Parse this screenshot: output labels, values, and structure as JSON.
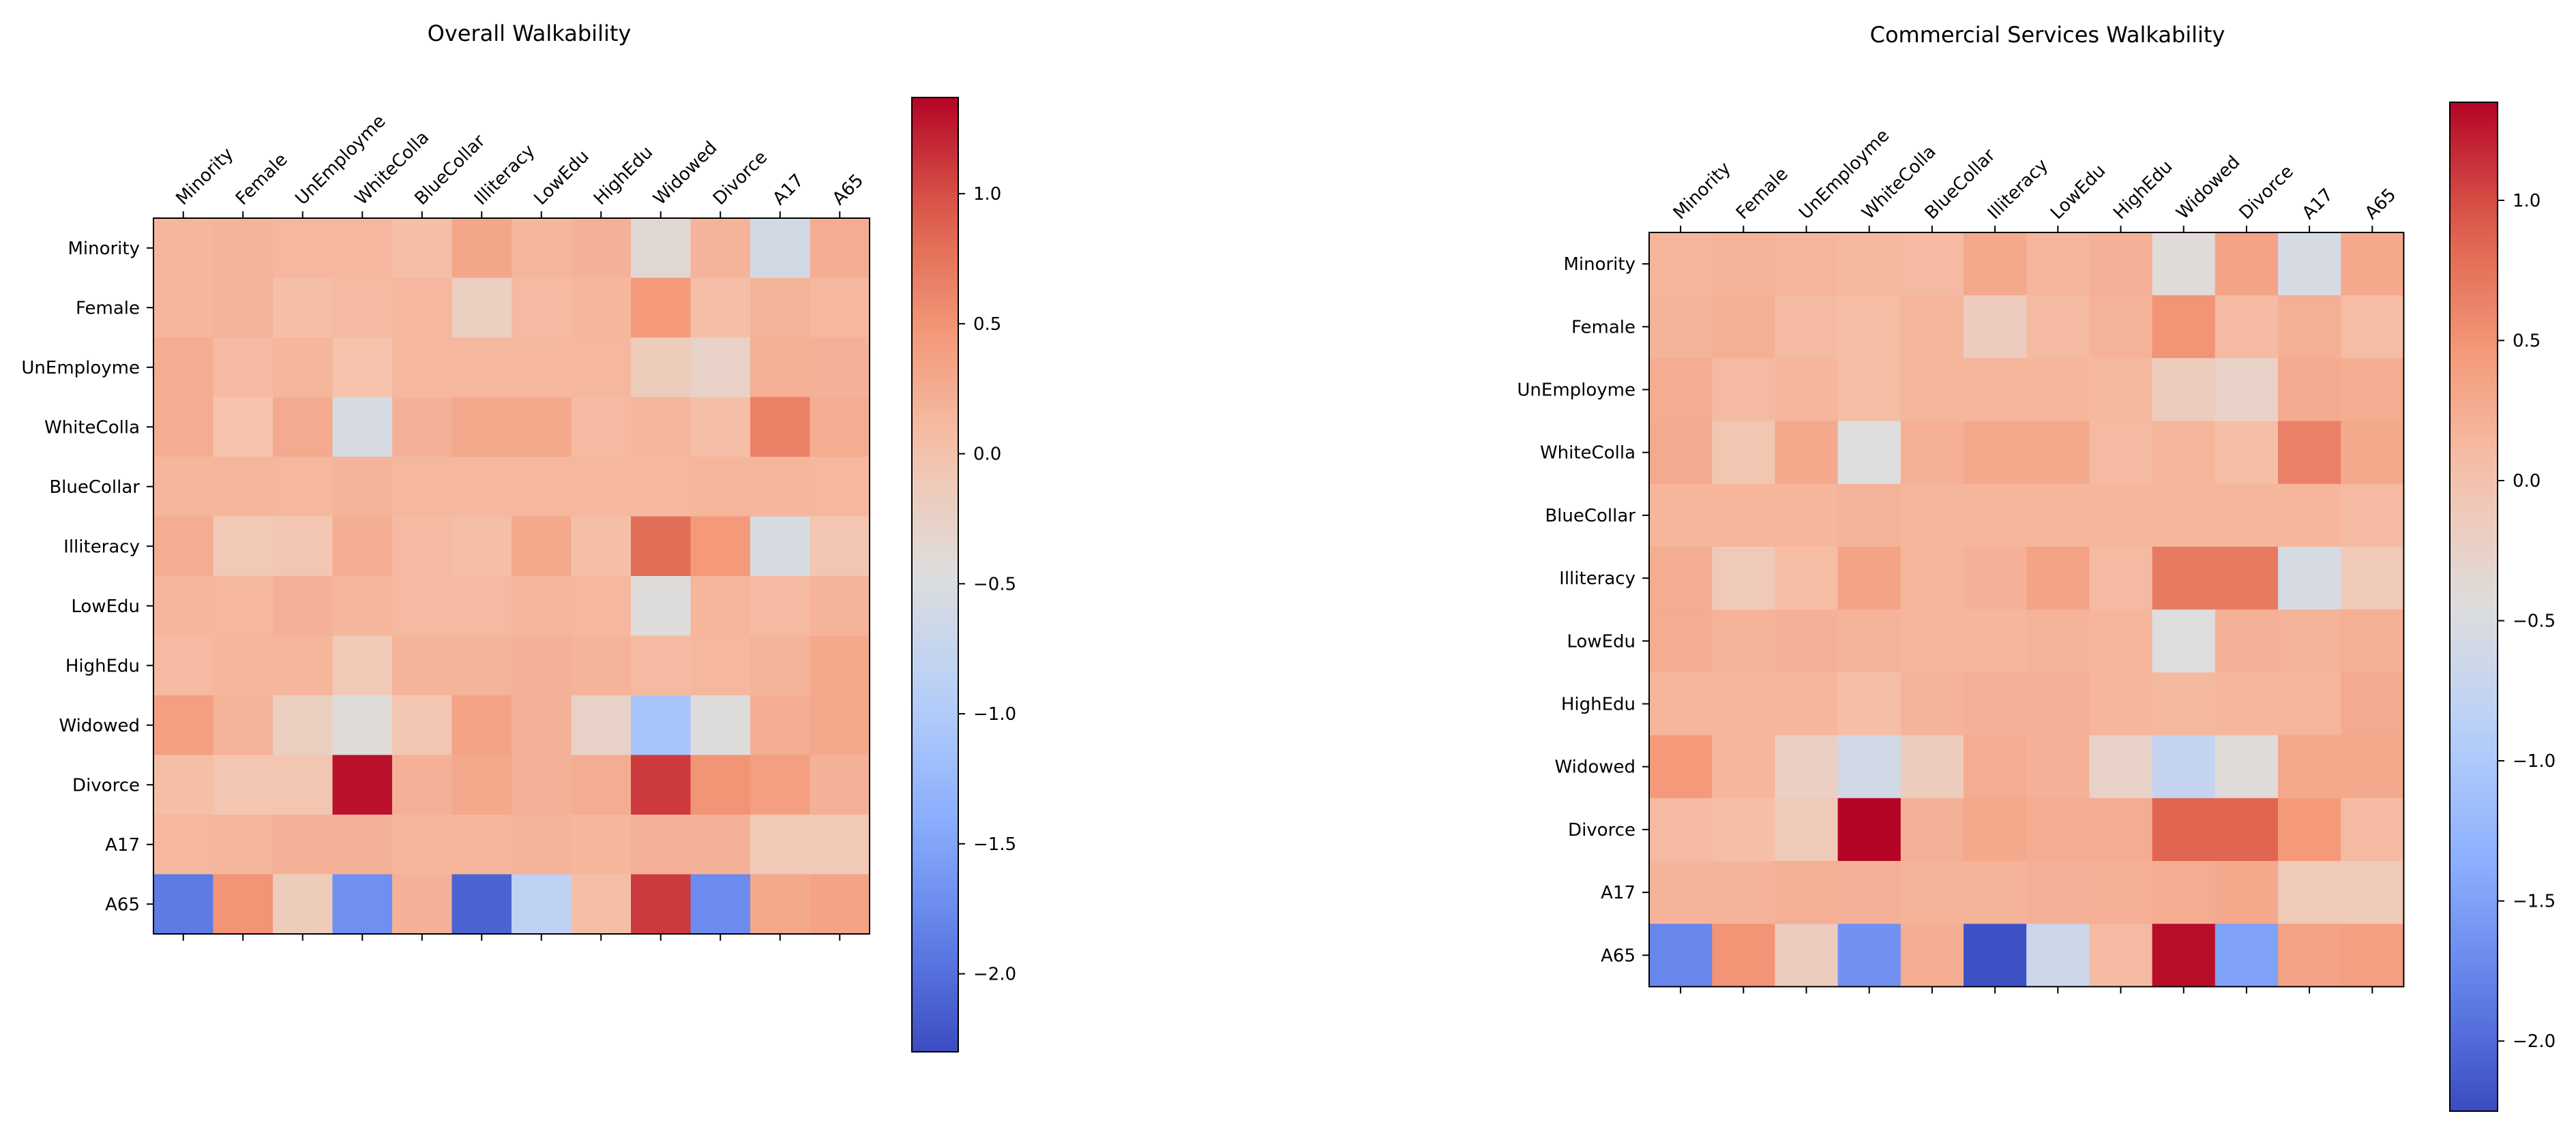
{
  "chart_data": [
    {
      "type": "heatmap",
      "title": "Overall Walkability",
      "xlabel": "",
      "ylabel": "",
      "x_categories": [
        "Minority",
        "Female",
        "UnEmployme",
        "WhiteColla",
        "BlueCollar",
        "Illiteracy",
        "LowEdu",
        "HighEdu",
        "Widowed",
        "Divorce",
        "A17",
        "A65"
      ],
      "y_categories": [
        "Minority",
        "Female",
        "UnEmployme",
        "WhiteColla",
        "BlueCollar",
        "Illiteracy",
        "LowEdu",
        "HighEdu",
        "Widowed",
        "Divorce",
        "A17",
        "A65"
      ],
      "values": [
        [
          0.15,
          0.18,
          0.12,
          0.12,
          0.05,
          0.32,
          0.15,
          0.2,
          -0.38,
          0.18,
          -0.6,
          0.25
        ],
        [
          0.15,
          0.18,
          0.05,
          0.1,
          0.12,
          -0.2,
          0.1,
          0.15,
          0.45,
          0.05,
          0.18,
          0.12
        ],
        [
          0.25,
          0.1,
          0.15,
          0.0,
          0.12,
          0.12,
          0.12,
          0.12,
          -0.15,
          -0.25,
          0.22,
          0.2
        ],
        [
          0.25,
          0.0,
          0.28,
          -0.55,
          0.2,
          0.3,
          0.3,
          0.1,
          0.15,
          0.05,
          0.65,
          0.25
        ],
        [
          0.15,
          0.15,
          0.12,
          0.18,
          0.12,
          0.12,
          0.12,
          0.12,
          0.12,
          0.15,
          0.15,
          0.12
        ],
        [
          0.25,
          -0.1,
          -0.05,
          0.25,
          0.1,
          0.05,
          0.3,
          0.05,
          0.8,
          0.45,
          -0.55,
          -0.05
        ],
        [
          0.15,
          0.12,
          0.2,
          0.15,
          0.1,
          0.1,
          0.15,
          0.12,
          -0.45,
          0.15,
          0.1,
          0.18
        ],
        [
          0.1,
          0.15,
          0.15,
          -0.1,
          0.18,
          0.18,
          0.2,
          0.18,
          0.1,
          0.12,
          0.18,
          0.3
        ],
        [
          0.4,
          0.18,
          -0.2,
          -0.42,
          -0.05,
          0.35,
          0.2,
          -0.25,
          -1.1,
          -0.45,
          0.25,
          0.3
        ],
        [
          0.05,
          -0.05,
          -0.05,
          1.3,
          0.2,
          0.3,
          0.2,
          0.25,
          1.1,
          0.5,
          0.4,
          0.2
        ],
        [
          0.12,
          0.15,
          0.2,
          0.2,
          0.15,
          0.15,
          0.18,
          0.15,
          0.2,
          0.2,
          -0.1,
          -0.1
        ],
        [
          -1.9,
          0.5,
          -0.15,
          -1.7,
          0.2,
          -2.1,
          -0.85,
          0.05,
          1.1,
          -1.75,
          0.3,
          0.35
        ]
      ],
      "colorbar": {
        "min": -2.3,
        "max": 1.37,
        "ticks": [
          1.0,
          0.5,
          0.0,
          -0.5,
          -1.0,
          -1.5,
          -2.0
        ],
        "tick_labels": [
          "1.0",
          "0.5",
          "0.0",
          "−0.5",
          "−1.0",
          "−1.5",
          "−2.0"
        ]
      },
      "colormap": "coolwarm"
    },
    {
      "type": "heatmap",
      "title": "Commercial Services Walkability",
      "xlabel": "",
      "ylabel": "",
      "x_categories": [
        "Minority",
        "Female",
        "UnEmployme",
        "WhiteColla",
        "BlueCollar",
        "Illiteracy",
        "LowEdu",
        "HighEdu",
        "Widowed",
        "Divorce",
        "A17",
        "A65"
      ],
      "y_categories": [
        "Minority",
        "Female",
        "UnEmployme",
        "WhiteColla",
        "BlueCollar",
        "Illiteracy",
        "LowEdu",
        "HighEdu",
        "Widowed",
        "Divorce",
        "A17",
        "A65"
      ],
      "values": [
        [
          0.15,
          0.18,
          0.15,
          0.12,
          0.1,
          0.3,
          0.15,
          0.2,
          -0.4,
          0.35,
          -0.55,
          0.3
        ],
        [
          0.18,
          0.22,
          0.1,
          0.08,
          0.15,
          -0.15,
          0.1,
          0.18,
          0.5,
          0.1,
          0.22,
          0.08
        ],
        [
          0.25,
          0.1,
          0.15,
          0.08,
          0.15,
          0.15,
          0.15,
          0.12,
          -0.15,
          -0.25,
          0.28,
          0.25
        ],
        [
          0.28,
          -0.05,
          0.3,
          -0.45,
          0.22,
          0.3,
          0.3,
          0.1,
          0.15,
          0.05,
          0.65,
          0.3
        ],
        [
          0.15,
          0.15,
          0.15,
          0.18,
          0.15,
          0.15,
          0.15,
          0.15,
          0.15,
          0.15,
          0.15,
          0.1
        ],
        [
          0.25,
          -0.1,
          0.08,
          0.35,
          0.15,
          0.2,
          0.35,
          0.1,
          0.7,
          0.7,
          -0.55,
          -0.1
        ],
        [
          0.25,
          0.18,
          0.2,
          0.18,
          0.15,
          0.15,
          0.18,
          0.15,
          -0.45,
          0.2,
          0.18,
          0.22
        ],
        [
          0.15,
          0.15,
          0.15,
          0.05,
          0.18,
          0.2,
          0.2,
          0.15,
          0.12,
          0.15,
          0.15,
          0.28
        ],
        [
          0.45,
          0.15,
          -0.2,
          -0.6,
          -0.15,
          0.25,
          0.2,
          -0.25,
          -0.75,
          -0.4,
          0.3,
          0.3
        ],
        [
          0.1,
          0.05,
          -0.1,
          1.35,
          0.2,
          0.3,
          0.25,
          0.25,
          0.85,
          0.85,
          0.45,
          0.1
        ],
        [
          0.18,
          0.18,
          0.22,
          0.2,
          0.18,
          0.18,
          0.2,
          0.22,
          0.25,
          0.3,
          -0.1,
          -0.1
        ],
        [
          -1.75,
          0.5,
          -0.15,
          -1.65,
          0.25,
          -2.2,
          -0.65,
          0.1,
          1.3,
          -1.5,
          0.35,
          0.4
        ]
      ],
      "colorbar": {
        "min": -2.25,
        "max": 1.35,
        "ticks": [
          1.0,
          0.5,
          0.0,
          -0.5,
          -1.0,
          -1.5,
          -2.0
        ],
        "tick_labels": [
          "1.0",
          "0.5",
          "0.0",
          "−0.5",
          "−1.0",
          "−1.5",
          "−2.0"
        ]
      },
      "colormap": "coolwarm"
    }
  ]
}
